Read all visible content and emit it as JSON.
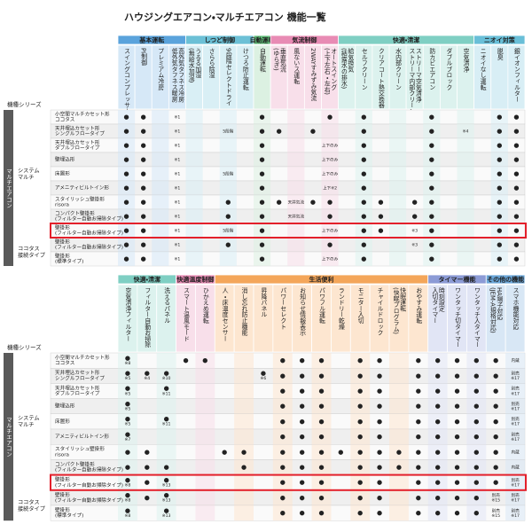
{
  "title": "ハウジングエアコン・マルチエアコン 機能一覧",
  "table1": {
    "series_header": "機種シリーズ",
    "series": "マルチエアコン",
    "groups": [
      {
        "name": "基本運転",
        "color": "#5aa3dc",
        "light": "#d6e8f7",
        "columns": [
          "スイングコンプレッサー",
          "PI制御",
          "プレミアム冷房",
          [
            "高外気タフネス冷房",
            "低外気タフネス暖房"
          ]
        ]
      },
      {
        "name": "しつど制御",
        "color": "#6cc0d6",
        "light": "#d9eff5",
        "columns": [
          [
            "うるる加湿",
            "(無給水加湿)"
          ],
          "さらら除湿",
          "9段階セレクトドライ",
          "けつろ防止運転"
        ]
      },
      {
        "name": "自動運転",
        "color": "#5fbf78",
        "light": "#dcf1e2",
        "columns": [
          "自動運転"
        ]
      },
      {
        "name": "気流制御",
        "color": "#e88bb4",
        "light": "#f8dfea",
        "columns": [
          [
            "垂直気流",
            "(ゆらぎ)"
          ],
          "風ないス運転",
          "2WAYすみずみ気流",
          [
            "オートスイング",
            "(上下左右・左右)"
          ]
        ]
      },
      {
        "name": "快適・清潔",
        "color": "#7fcfc3",
        "light": "#dcf2ee",
        "columns": [
          [
            "給気換気",
            "(結露水の排水)"
          ],
          "セルフクリーン",
          "クリアコート熱交換器",
          "水内部クリーン",
          [
            "ストリーマ空気清浄",
            "ストリーマ内部クリーン"
          ],
          "防カビエアコン",
          "ダブルブロック",
          "空気清浄"
        ]
      },
      {
        "name": "ニオイ対策",
        "color": "#69bfd8",
        "light": "#d8eef5",
        "columns": [
          "ニオイなし運転",
          "脱臭",
          "銀イオンフィルター"
        ]
      }
    ],
    "row_groups": [
      {
        "label": [
          "システム",
          "マルチ"
        ],
        "rows": [
          {
            "label": [
              "小空間マルチカセット形",
              "ココタス"
            ],
            "cells": [
              "●",
              "●",
              null,
              "※1",
              null,
              null,
              null,
              null,
              "●",
              null,
              null,
              null,
              "●",
              null,
              "●",
              null,
              null,
              null,
              "●",
              null,
              null,
              null,
              "●",
              "●"
            ]
          },
          {
            "label": [
              "天井埋込カセット形",
              "シングルフロータイプ"
            ],
            "cells": [
              "●",
              "●",
              null,
              "※1",
              null,
              null,
              "5段階",
              null,
              "●",
              "●",
              null,
              "●",
              null,
              null,
              "●",
              null,
              null,
              null,
              "●",
              null,
              "※4",
              null,
              "●",
              "●"
            ]
          },
          {
            "label": [
              "天井埋込カセット形",
              "ダブルフロータイプ"
            ],
            "cells": [
              "●",
              "●",
              null,
              "※1",
              null,
              null,
              null,
              null,
              "●",
              null,
              null,
              null,
              "上下のみ",
              null,
              "●",
              null,
              null,
              null,
              "●",
              null,
              null,
              null,
              "●",
              "●"
            ]
          },
          {
            "label": [
              "壁埋込形"
            ],
            "cells": [
              "●",
              "●",
              null,
              "※1",
              null,
              null,
              null,
              null,
              "●",
              null,
              null,
              null,
              "上下のみ",
              null,
              "●",
              null,
              null,
              null,
              "●",
              null,
              null,
              null,
              "●",
              "●"
            ]
          },
          {
            "label": [
              "床置形"
            ],
            "cells": [
              "●",
              "●",
              null,
              "※1",
              null,
              null,
              "5段階",
              null,
              "●",
              null,
              null,
              null,
              "上下のみ",
              null,
              "●",
              null,
              null,
              null,
              "●",
              null,
              null,
              null,
              "●",
              "●"
            ]
          },
          {
            "label": [
              "アメニティビルトイン形"
            ],
            "cells": [
              "●",
              "●",
              null,
              "※1",
              null,
              null,
              null,
              null,
              "●",
              null,
              null,
              null,
              "上下※2",
              null,
              "●",
              null,
              null,
              null,
              "●",
              null,
              null,
              null,
              "●",
              "●"
            ]
          },
          {
            "label": [
              "スタイリッシュ壁掛形",
              "risora"
            ],
            "cells": [
              "●",
              "●",
              null,
              "※1",
              null,
              null,
              "●",
              null,
              "●",
              "●",
              "天井気流",
              "●",
              "●",
              null,
              "●",
              "●",
              null,
              "●",
              "●",
              null,
              null,
              null,
              "●",
              "●"
            ]
          },
          {
            "label": [
              "コンパクト壁掛形",
              "(フィルター自動お掃除タイプ)"
            ],
            "cells": [
              "●",
              "●",
              null,
              "※1",
              null,
              null,
              "●",
              null,
              "●",
              null,
              "天井気流",
              null,
              "●",
              null,
              "●",
              "●",
              null,
              "●",
              "●",
              null,
              null,
              null,
              "●",
              "●"
            ]
          },
          {
            "label": [
              "壁掛形",
              "(フィルター自動お掃除タイプ)"
            ],
            "highlight": true,
            "cells": [
              "●",
              "●",
              null,
              "※1",
              null,
              null,
              "5段階",
              null,
              "●",
              null,
              null,
              null,
              "上下のみ",
              null,
              "●",
              "●",
              null,
              "※3",
              "●",
              null,
              null,
              null,
              "●",
              "●"
            ]
          }
        ]
      },
      {
        "label": [
          "ココタス",
          "接続タイプ"
        ],
        "rows": [
          {
            "label": [
              "壁掛形",
              "(フィルター自動お掃除タイプ)"
            ],
            "cells": [
              "●",
              "●",
              null,
              "※1",
              null,
              null,
              "●",
              null,
              "●",
              null,
              null,
              null,
              "●",
              null,
              "●",
              null,
              null,
              "※3",
              "●",
              null,
              null,
              null,
              "●",
              "●"
            ]
          },
          {
            "label": [
              "壁掛形",
              "(標準タイプ)"
            ],
            "cells": [
              "●",
              "●",
              null,
              "※1",
              null,
              null,
              null,
              null,
              "●",
              null,
              null,
              null,
              "上下のみ",
              null,
              "●",
              null,
              null,
              null,
              "●",
              null,
              null,
              null,
              "●",
              "●"
            ]
          }
        ]
      }
    ]
  },
  "table2": {
    "series_header": "機種シリーズ",
    "series": "マルチエアコン",
    "groups": [
      {
        "name": "快適・清潔",
        "color": "#7fcfc3",
        "light": "#dcf2ee",
        "columns": [
          "空気清浄フィルター",
          "フィルター自動お掃除",
          "洗えるパネル"
        ]
      },
      {
        "name": "快適温度制御",
        "color": "#e88bb4",
        "light": "#f8dfea",
        "columns": [
          "スマート温風モード",
          "ひかえめ運転"
        ]
      },
      {
        "name": "生活便利",
        "color": "#f4a65a",
        "light": "#fde6d0",
        "columns": [
          "人・床温度センサー",
          "消し忘れ防止機能",
          "昇降パネル",
          "パワーセレクト",
          "お知らせ情報表示",
          "パワフル運転",
          "ランドリー乾燥",
          "モニター入切",
          "チャイルドロック",
          [
            "快眠運転",
            "(快眠プログラム)"
          ],
          "おやすみ運転"
        ]
      },
      {
        "name": "タイマー機能",
        "color": "#8c9bd6",
        "light": "#e1e5f5",
        "columns": [
          [
            "時刻設定",
            "入切タイマー"
          ],
          "ワンタッチ切タイマー",
          "ワンタッチ入タイマー"
        ]
      },
      {
        "name": "その他の機能",
        "color": "#6aa6d9",
        "light": "#d8e7f5",
        "columns": [
          [
            "HA端子対応",
            "(JEM-A規格対応)"
          ],
          "スマホ機能対応"
        ]
      }
    ],
    "row_groups": [
      {
        "label": [
          "システム",
          "マルチ"
        ],
        "rows": [
          {
            "label": [
              "小空間マルチカセット形",
              "ココタス"
            ],
            "cells": [
              [
                "●",
                "※8"
              ],
              null,
              null,
              "●",
              "●",
              null,
              null,
              null,
              "●",
              "●",
              "●",
              null,
              "●",
              "●",
              null,
              "●",
              "●",
              "●",
              "●",
              "●",
              "内蔵"
            ]
          },
          {
            "label": [
              "天井埋込カセット形",
              "シングルフロータイプ"
            ],
            "cells": [
              [
                "●",
                "※5"
              ],
              [
                "●",
                "※4"
              ],
              [
                "●",
                "※10"
              ],
              null,
              null,
              null,
              null,
              [
                "●",
                "※6"
              ],
              "●",
              "●",
              "●",
              null,
              "●",
              "●",
              null,
              "●",
              "●",
              "●",
              "●",
              "●",
              [
                "別売",
                "※17"
              ]
            ]
          },
          {
            "label": [
              "天井埋込カセット形",
              "ダブルフロータイプ"
            ],
            "cells": [
              [
                "●",
                "※5"
              ],
              null,
              [
                "●",
                "※11"
              ],
              null,
              null,
              null,
              null,
              null,
              "●",
              "●",
              "●",
              null,
              "●",
              "●",
              null,
              "●",
              "●",
              "●",
              "●",
              "●",
              [
                "別売",
                "※17"
              ]
            ]
          },
          {
            "label": [
              "壁埋込形"
            ],
            "cells": [
              [
                "●",
                "※5"
              ],
              null,
              null,
              null,
              null,
              null,
              null,
              null,
              "●",
              "●",
              "●",
              null,
              "●",
              "●",
              null,
              "●",
              "●",
              "●",
              "●",
              "●",
              [
                "別売",
                "※17"
              ]
            ]
          },
          {
            "label": [
              "床置形"
            ],
            "cells": [
              [
                "●",
                "※5"
              ],
              null,
              [
                "●",
                "※11"
              ],
              null,
              null,
              null,
              null,
              null,
              "●",
              "●",
              "●",
              null,
              "●",
              "●",
              null,
              "●",
              "●",
              "●",
              "●",
              "●",
              [
                "別売",
                "※17"
              ]
            ]
          },
          {
            "label": [
              "アメニティビルトイン形"
            ],
            "cells": [
              [
                "●",
                "※7"
              ],
              null,
              null,
              null,
              null,
              null,
              null,
              null,
              "●",
              "●",
              "●",
              null,
              "●",
              "●",
              null,
              "●",
              "●",
              "●",
              "●",
              "●",
              [
                "別売",
                "※17"
              ]
            ]
          },
          {
            "label": [
              "スタイリッシュ壁掛形",
              "risora"
            ],
            "cells": [
              "●",
              "●",
              null,
              null,
              null,
              "●",
              "●",
              null,
              "●",
              "●",
              "●",
              "●",
              "●",
              "●",
              "●",
              "●",
              "●",
              "●",
              "●",
              "●",
              "内蔵"
            ]
          },
          {
            "label": [
              "コンパクト壁掛形",
              "(フィルター自動お掃除タイプ)"
            ],
            "cells": [
              "●",
              "●",
              "●",
              null,
              null,
              null,
              "●",
              null,
              "●",
              "●",
              "●",
              null,
              "●",
              "●",
              "●",
              "●",
              "●",
              "●",
              "●",
              "●",
              "内蔵"
            ]
          },
          {
            "label": [
              "壁掛形",
              "(フィルター自動お掃除タイプ)"
            ],
            "highlight": true,
            "cells": [
              [
                "●",
                "※8"
              ],
              "●",
              [
                "●",
                "※13"
              ],
              null,
              null,
              null,
              null,
              null,
              "●",
              "●",
              "●",
              null,
              "●",
              "●",
              null,
              "●",
              "●",
              "●",
              "●",
              "●",
              [
                "別売",
                "※17"
              ]
            ]
          }
        ]
      },
      {
        "label": [
          "ココタス",
          "接続タイプ"
        ],
        "rows": [
          {
            "label": [
              "壁掛形",
              "(フィルター自動お掃除タイプ)"
            ],
            "cells": [
              [
                "●",
                "※8"
              ],
              "●",
              [
                "●",
                "※13"
              ],
              null,
              null,
              null,
              null,
              null,
              "●",
              "●",
              "●",
              null,
              "●",
              "●",
              null,
              "●",
              "●",
              "●",
              "●",
              [
                "別売",
                "※15"
              ],
              [
                "別売",
                "※17"
              ]
            ]
          },
          {
            "label": [
              "壁掛形",
              "(標準タイプ)"
            ],
            "cells": [
              [
                "●",
                "※8"
              ],
              null,
              [
                "●",
                "※13"
              ],
              null,
              null,
              null,
              null,
              null,
              "●",
              "●",
              "●",
              null,
              "●",
              "●",
              null,
              "●",
              "●",
              "●",
              "●",
              [
                "別売",
                "※15"
              ],
              [
                "別売",
                "※17"
              ]
            ]
          }
        ]
      }
    ]
  }
}
